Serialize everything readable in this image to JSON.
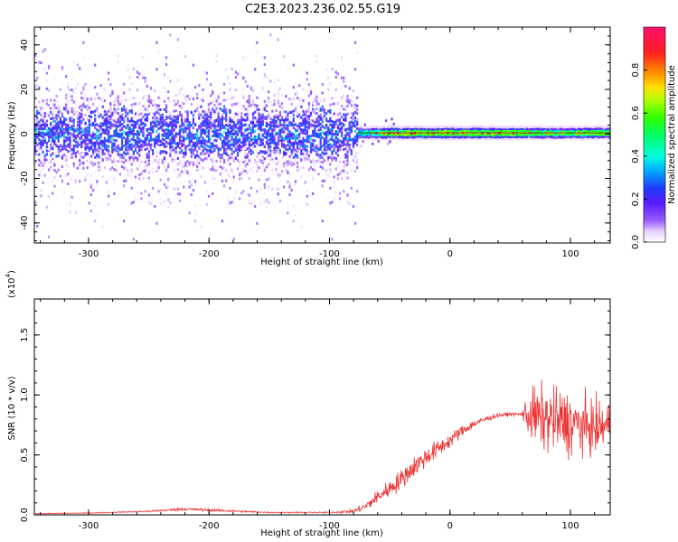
{
  "figure": {
    "title": "C2E3.2023.236.02.55.G19"
  },
  "chart_data": [
    {
      "type": "heatmap",
      "xlabel": "Height of straight line (km)",
      "ylabel": "Frequency (Hz)",
      "xlim": [
        -345,
        133
      ],
      "ylim": [
        -49,
        48
      ],
      "xticks": [
        -300,
        -200,
        -100,
        0,
        100
      ],
      "xtick_labels": [
        "-300",
        "-200",
        "-100",
        "0",
        "100"
      ],
      "yticks": [
        -40,
        -20,
        0,
        20,
        40
      ],
      "ytick_labels": [
        "-40",
        "-20",
        "0",
        "20",
        "40"
      ],
      "colorbar": {
        "label": "Normalized spectral amplitude",
        "range": [
          0,
          1
        ],
        "ticks": [
          0.0,
          0.2,
          0.4,
          0.6,
          0.8
        ],
        "tick_labels": [
          "0.0",
          "0.2",
          "0.4",
          "0.6",
          "0.8"
        ],
        "colormap": "rainbow (white → violet → blue → cyan → green → yellow → red → magenta)"
      },
      "grid": false,
      "features": [
        {
          "region": "noise",
          "x_range": [
            -345,
            -77
          ],
          "freq_spread_hz": 48,
          "core_band_hz": [
            -8,
            8
          ],
          "peak_amplitude": 0.4
        },
        {
          "region": "signal",
          "x_range": [
            -77,
            133
          ],
          "center_freq_hz": 0.5,
          "band_width_hz": 3,
          "peak_amplitude": 0.9
        }
      ]
    },
    {
      "type": "line",
      "xlabel": "Height of straight line (km)",
      "ylabel": "SNR (10 * v/v)",
      "multiplier_label": "(x10",
      "multiplier_exp": "4",
      "multiplier_close": ")",
      "xlim": [
        -345,
        133
      ],
      "ylim": [
        0,
        1.8
      ],
      "xticks": [
        -300,
        -200,
        -100,
        0,
        100
      ],
      "xtick_labels": [
        "-300",
        "-200",
        "-100",
        "0",
        "100"
      ],
      "yticks": [
        0.0,
        0.5,
        1.0,
        1.5
      ],
      "ytick_labels": [
        "0.0",
        "0.5",
        "1.0",
        "1.5"
      ],
      "grid": false,
      "series": [
        {
          "color": "#ee3333",
          "x": [
            -345,
            -300,
            -250,
            -220,
            -200,
            -150,
            -100,
            -80,
            -70,
            -60,
            -50,
            -40,
            -30,
            -20,
            -10,
            0,
            10,
            20,
            30,
            40,
            50,
            60,
            64,
            70,
            80,
            90,
            100,
            110,
            120,
            133
          ],
          "y": [
            0.01,
            0.015,
            0.03,
            0.05,
            0.04,
            0.02,
            0.02,
            0.03,
            0.07,
            0.15,
            0.22,
            0.3,
            0.4,
            0.48,
            0.55,
            0.62,
            0.7,
            0.76,
            0.8,
            0.83,
            0.84,
            0.84,
            0.84,
            0.82,
            0.8,
            0.78,
            0.76,
            0.74,
            0.72,
            0.75
          ],
          "noise_amplitude": [
            0.005,
            0.006,
            0.01,
            0.02,
            0.02,
            0.008,
            0.008,
            0.03,
            0.06,
            0.1,
            0.12,
            0.14,
            0.14,
            0.14,
            0.12,
            0.1,
            0.08,
            0.06,
            0.04,
            0.03,
            0.025,
            0.025,
            0.3,
            0.4,
            0.45,
            0.45,
            0.45,
            0.4,
            0.35,
            0.3
          ]
        }
      ]
    }
  ]
}
